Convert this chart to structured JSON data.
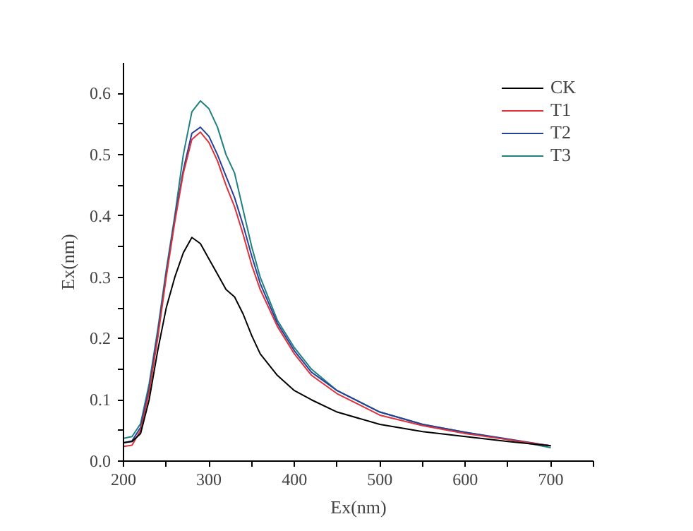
{
  "chart_data": {
    "type": "line",
    "xlabel": "Ex(nm)",
    "ylabel": "Ex(nm)",
    "xlim": [
      200,
      750
    ],
    "ylim": [
      0,
      0.65
    ],
    "xticks": [
      200,
      {
        "value": 250,
        "label": null
      },
      300,
      {
        "value": 350,
        "label": null
      },
      400,
      {
        "value": 450,
        "label": null
      },
      500,
      {
        "value": 550,
        "label": null
      },
      600,
      {
        "value": 650,
        "label": null
      },
      700,
      {
        "value": 750,
        "label": null
      }
    ],
    "yticks": [
      {
        "value": 0,
        "label": "0.0"
      },
      {
        "value": 0.05,
        "label": null
      },
      0.1,
      {
        "value": 0.15,
        "label": null
      },
      0.2,
      {
        "value": 0.25,
        "label": null
      },
      0.3,
      {
        "value": 0.35,
        "label": null
      },
      0.4,
      {
        "value": 0.45,
        "label": null
      },
      0.5,
      {
        "value": 0.55,
        "label": null
      },
      0.6
    ],
    "x": [
      200,
      210,
      220,
      230,
      240,
      250,
      260,
      270,
      280,
      290,
      300,
      310,
      320,
      330,
      340,
      350,
      360,
      380,
      400,
      420,
      450,
      500,
      550,
      600,
      650,
      700
    ],
    "series": [
      {
        "name": "CK",
        "color": "#000000",
        "values": [
          0.03,
          0.032,
          0.045,
          0.1,
          0.18,
          0.25,
          0.3,
          0.34,
          0.365,
          0.355,
          0.33,
          0.305,
          0.28,
          0.268,
          0.24,
          0.205,
          0.175,
          0.14,
          0.115,
          0.1,
          0.08,
          0.06,
          0.048,
          0.04,
          0.032,
          0.025
        ]
      },
      {
        "name": "T1",
        "color": "#e0303a",
        "values": [
          0.024,
          0.026,
          0.05,
          0.112,
          0.2,
          0.3,
          0.39,
          0.47,
          0.525,
          0.537,
          0.52,
          0.49,
          0.45,
          0.415,
          0.37,
          0.32,
          0.28,
          0.22,
          0.175,
          0.14,
          0.11,
          0.075,
          0.058,
          0.045,
          0.035,
          0.025
        ]
      },
      {
        "name": "T2",
        "color": "#23409a",
        "values": [
          0.03,
          0.033,
          0.055,
          0.118,
          0.206,
          0.305,
          0.395,
          0.475,
          0.535,
          0.545,
          0.53,
          0.5,
          0.465,
          0.43,
          0.385,
          0.335,
          0.29,
          0.225,
          0.18,
          0.145,
          0.115,
          0.08,
          0.06,
          0.047,
          0.036,
          0.025
        ]
      },
      {
        "name": "T3",
        "color": "#1f8080",
        "values": [
          0.037,
          0.04,
          0.061,
          0.126,
          0.214,
          0.312,
          0.4,
          0.5,
          0.57,
          0.588,
          0.575,
          0.545,
          0.5,
          0.47,
          0.41,
          0.35,
          0.3,
          0.23,
          0.185,
          0.15,
          0.115,
          0.08,
          0.06,
          0.047,
          0.035,
          0.022
        ]
      }
    ],
    "legend": "top right"
  }
}
